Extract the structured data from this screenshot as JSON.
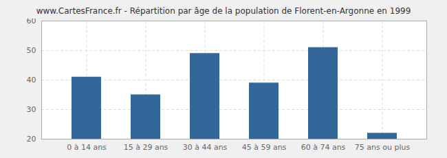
{
  "chart_data": {
    "type": "bar",
    "title": "www.CartesFrance.fr - Répartition par âge de la population de Florent-en-Argonne en 1999",
    "categories": [
      "0 à 14 ans",
      "15 à 29 ans",
      "30 à 44 ans",
      "45 à 59 ans",
      "60 à 74 ans",
      "75 ans ou plus"
    ],
    "values": [
      41,
      35,
      49,
      39,
      51,
      22
    ],
    "color": "#336699",
    "ylim": [
      20,
      60
    ],
    "yticks": [
      20,
      30,
      40,
      50,
      60
    ],
    "grid": true
  }
}
